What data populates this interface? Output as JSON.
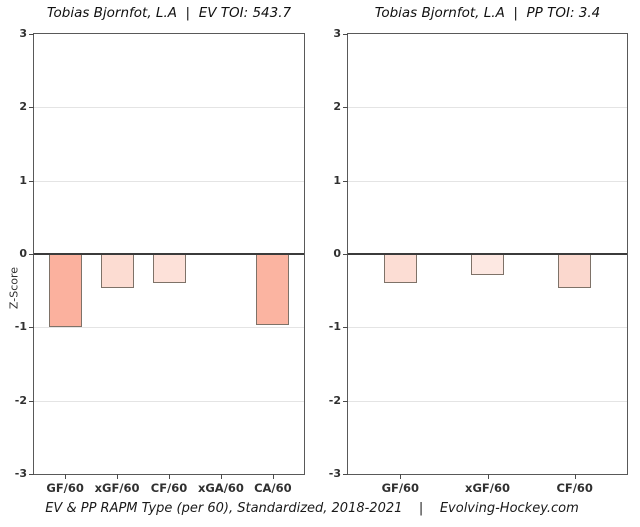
{
  "caption": "EV & PP RAPM Type (per 60), Standardized, 2018-2021    |    Evolving-Hockey.com",
  "y_axis_title": "Z-Score",
  "colors": {
    "bar_border": "#7e7268",
    "zero_line": "#3b3b3b",
    "gridline": "#e4e4e4",
    "panel_border": "#595959",
    "text": "#303030"
  },
  "chart_data": [
    {
      "type": "bar",
      "title": "Tobias Bjornfot, L.A  |  EV TOI: 543.7",
      "ylabel": "Z-Score",
      "categories": [
        "GF/60",
        "xGF/60",
        "CF/60",
        "xGA/60",
        "CA/60"
      ],
      "values": [
        -1.0,
        -0.47,
        -0.4,
        0.02,
        -0.97
      ],
      "bar_colors": [
        "#FBB19E",
        "#FCDCD2",
        "#FDE1D9",
        "#FEF6F2",
        "#FBB4A1"
      ],
      "ylim": [
        -3,
        3
      ],
      "yticks": [
        3,
        2,
        1,
        0,
        -1,
        -2,
        -3
      ],
      "grid": true,
      "legend": "none"
    },
    {
      "type": "bar",
      "title": "Tobias Bjornfot, L.A  |  PP TOI: 3.4",
      "ylabel": "",
      "categories": [
        "GF/60",
        "xGF/60",
        "CF/60"
      ],
      "values": [
        -0.4,
        -0.28,
        -0.47
      ],
      "bar_colors": [
        "#FCDDD4",
        "#FDE8E2",
        "#FBD8CE"
      ],
      "ylim": [
        -3,
        3
      ],
      "yticks": [
        3,
        2,
        1,
        0,
        -1,
        -2,
        -3
      ],
      "grid": true,
      "legend": "none"
    }
  ]
}
